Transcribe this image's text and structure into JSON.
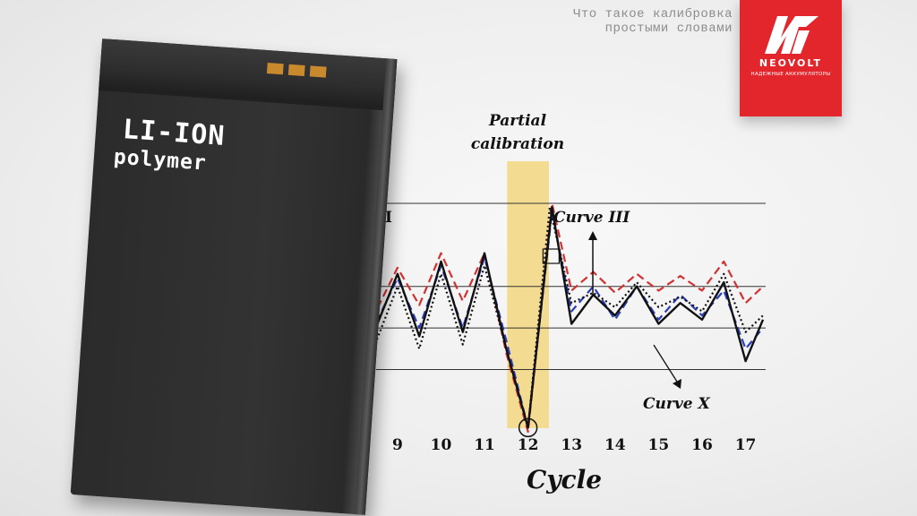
{
  "caption": {
    "line1": "Что такое калибровка",
    "line2": "простыми словами"
  },
  "logo": {
    "name": "NEOVOLT",
    "tagline": "надежные аккумуляторы",
    "brand_color": "#e3262c"
  },
  "battery": {
    "label_line1": "LI-ION",
    "label_line2": "polymer",
    "contact_color": "#c98a2e",
    "body_color": "#2f2f2f"
  },
  "chart_data": {
    "type": "line",
    "annotation_title_line1": "Partial",
    "annotation_title_line2": "calibration",
    "highlight_category": 12,
    "highlight_color": "#f3dc92",
    "left_edge_label": "II",
    "curve_labels": [
      "Curve III",
      "Curve X"
    ],
    "xlabel": "Cycle",
    "x_ticks": [
      9,
      10,
      11,
      12,
      13,
      14,
      15,
      16,
      17
    ],
    "reference_lines_level": [
      100,
      60,
      40,
      20
    ],
    "series": [
      {
        "name": "Curve III",
        "color": "#d23131",
        "style": "dashed",
        "points": [
          [
            8.2,
            60
          ],
          [
            8.55,
            50
          ],
          [
            9,
            69
          ],
          [
            9.5,
            51
          ],
          [
            10,
            76
          ],
          [
            10.5,
            53
          ],
          [
            11,
            76
          ],
          [
            11.5,
            28
          ],
          [
            12,
            -10
          ],
          [
            12.55,
            100
          ],
          [
            13,
            58
          ],
          [
            13.5,
            67
          ],
          [
            14,
            57
          ],
          [
            14.5,
            66
          ],
          [
            15,
            58
          ],
          [
            15.5,
            65
          ],
          [
            16,
            58
          ],
          [
            16.5,
            72
          ],
          [
            17,
            52
          ],
          [
            17.4,
            60
          ]
        ]
      },
      {
        "name": "",
        "color": "#2a3fb7",
        "style": "dashed",
        "points": [
          [
            8.2,
            58
          ],
          [
            8.5,
            42
          ],
          [
            9,
            64
          ],
          [
            9.5,
            40
          ],
          [
            10,
            70
          ],
          [
            10.5,
            40
          ],
          [
            11,
            74
          ],
          [
            11.5,
            34
          ],
          [
            12,
            -8
          ],
          [
            12.55,
            96
          ],
          [
            13,
            48
          ],
          [
            13.5,
            60
          ],
          [
            14,
            44
          ],
          [
            14.5,
            60
          ],
          [
            15,
            44
          ],
          [
            15.5,
            56
          ],
          [
            16,
            46
          ],
          [
            16.5,
            58
          ],
          [
            17,
            30
          ],
          [
            17.4,
            40
          ]
        ]
      },
      {
        "name": "",
        "color": "#111111",
        "style": "dotted",
        "points": [
          [
            8.2,
            52
          ],
          [
            8.5,
            33
          ],
          [
            9,
            60
          ],
          [
            9.5,
            30
          ],
          [
            10,
            66
          ],
          [
            10.5,
            32
          ],
          [
            11,
            70
          ],
          [
            11.5,
            30
          ],
          [
            12,
            -8
          ],
          [
            12.5,
            98
          ],
          [
            13,
            52
          ],
          [
            13.5,
            57
          ],
          [
            14,
            50
          ],
          [
            14.5,
            62
          ],
          [
            15,
            50
          ],
          [
            15.5,
            55
          ],
          [
            16,
            48
          ],
          [
            16.5,
            66
          ],
          [
            17,
            38
          ],
          [
            17.4,
            46
          ]
        ]
      },
      {
        "name": "Curve X",
        "color": "#111111",
        "style": "solid",
        "points": [
          [
            8.2,
            60
          ],
          [
            8.5,
            40
          ],
          [
            9,
            66
          ],
          [
            9.5,
            36
          ],
          [
            10,
            72
          ],
          [
            10.5,
            38
          ],
          [
            11,
            76
          ],
          [
            11.5,
            30
          ],
          [
            12,
            -8
          ],
          [
            12.55,
            98
          ],
          [
            13,
            42
          ],
          [
            13.5,
            56
          ],
          [
            14,
            46
          ],
          [
            14.5,
            60
          ],
          [
            15,
            42
          ],
          [
            15.5,
            52
          ],
          [
            16,
            44
          ],
          [
            16.5,
            62
          ],
          [
            17,
            24
          ],
          [
            17.4,
            44
          ]
        ]
      }
    ]
  }
}
